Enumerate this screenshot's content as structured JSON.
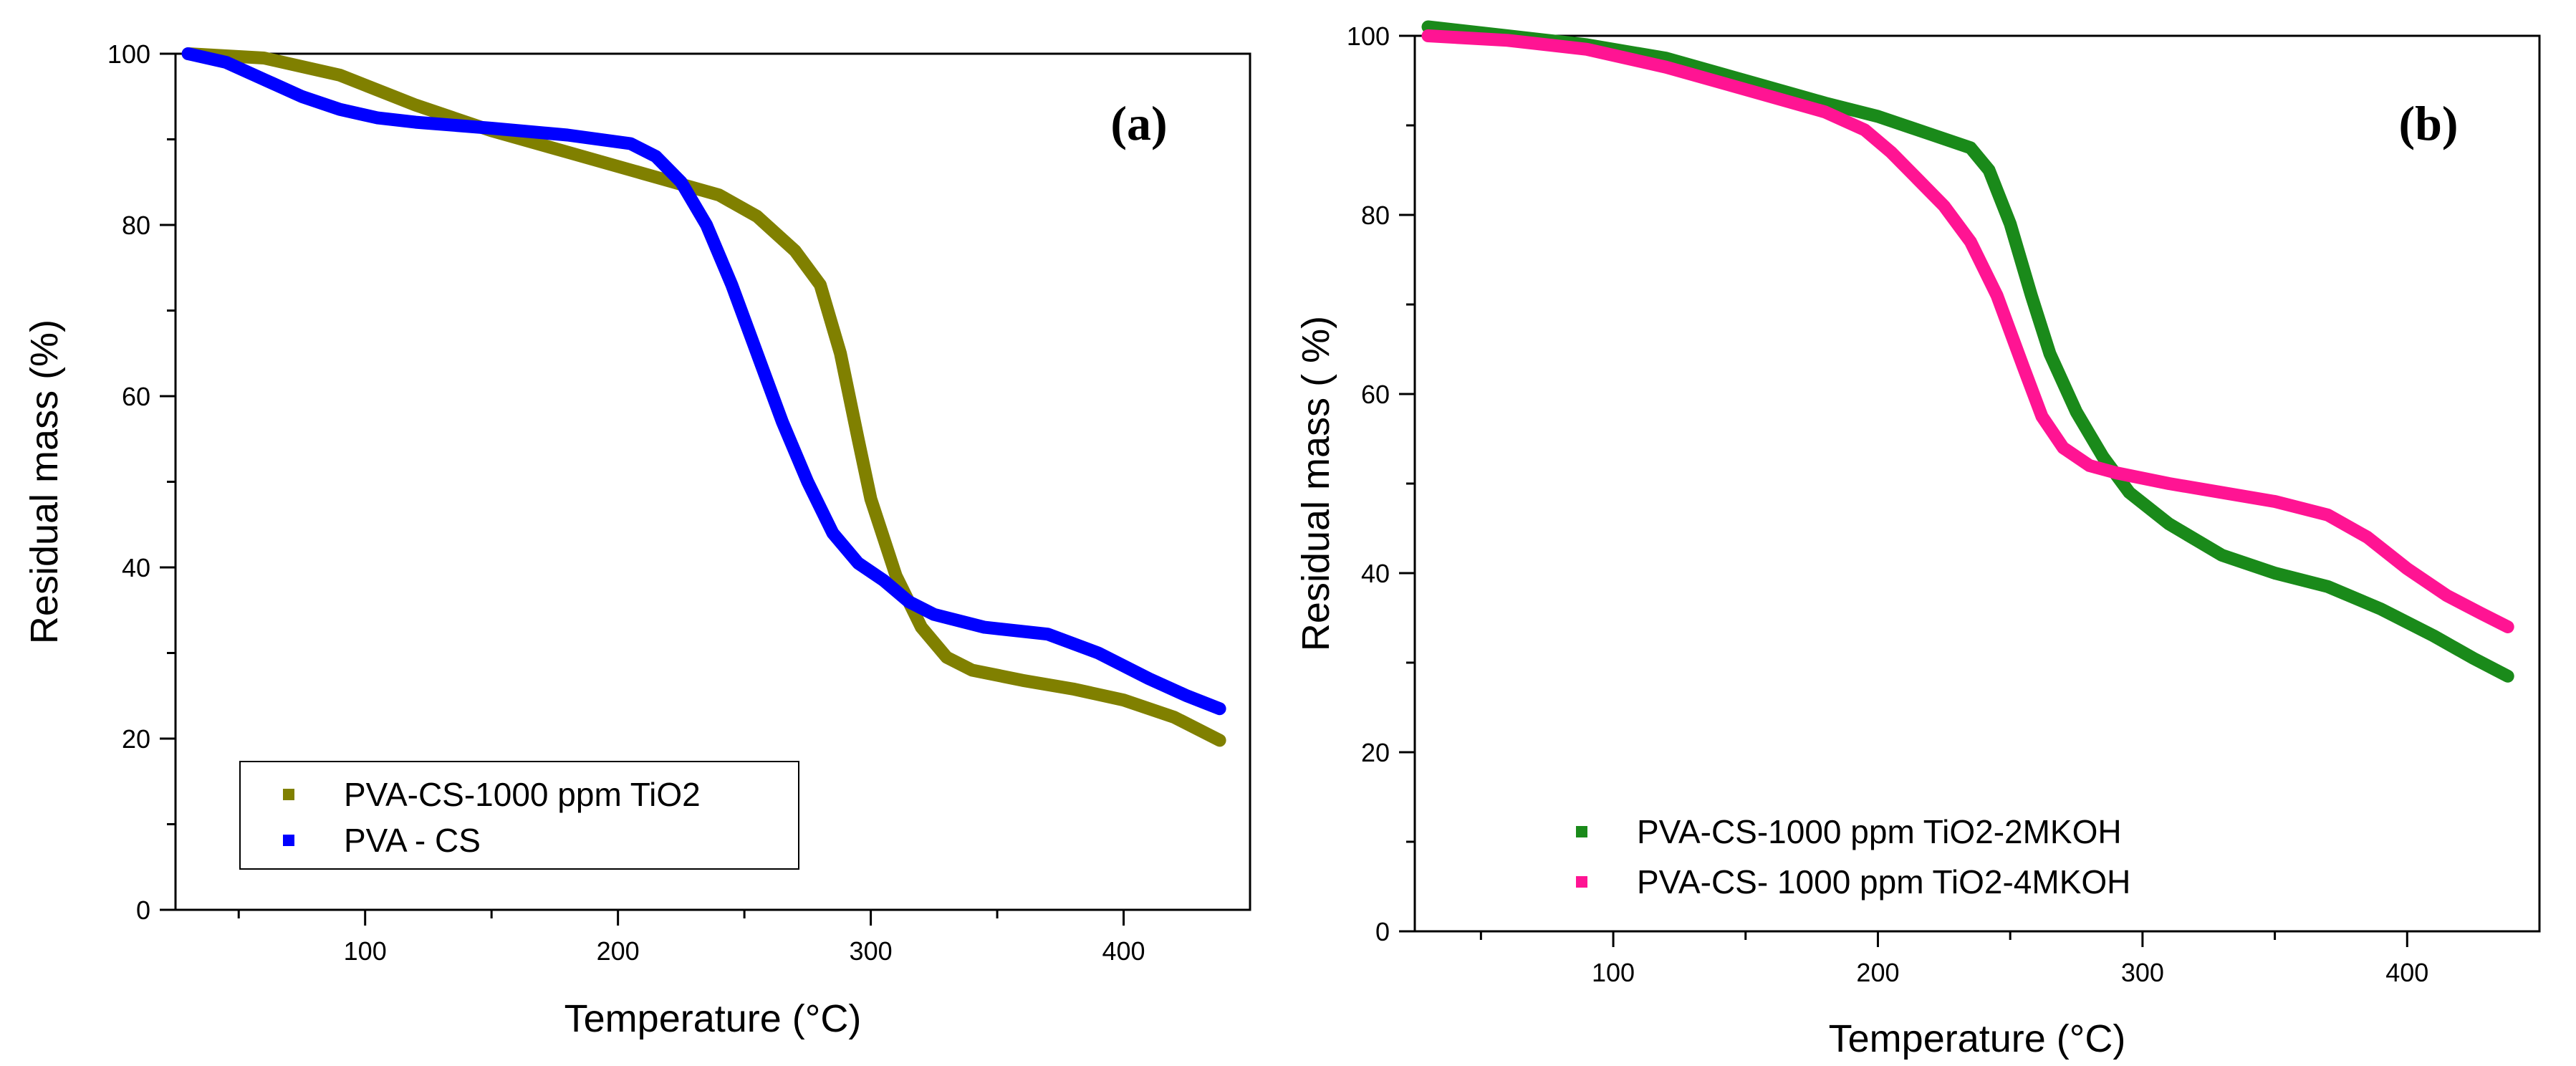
{
  "chart_data": [
    {
      "panel": "(a)",
      "type": "line",
      "xlabel": "Temperature (°C)",
      "ylabel": "Residual mass (%)",
      "xlim": [
        25,
        450
      ],
      "ylim": [
        0,
        100
      ],
      "xticks": [
        100,
        200,
        300,
        400
      ],
      "yticks": [
        0,
        20,
        40,
        60,
        80,
        100
      ],
      "grid": false,
      "legend_position": "bottom-left",
      "series": [
        {
          "name": "PVA-CS-1000 ppm TiO2",
          "color": "#808000",
          "x": [
            30,
            60,
            90,
            120,
            150,
            180,
            210,
            240,
            255,
            270,
            280,
            288,
            295,
            300,
            310,
            320,
            330,
            340,
            360,
            380,
            400,
            420,
            438
          ],
          "y": [
            100,
            99.5,
            97.5,
            94,
            91,
            88.5,
            86,
            83.5,
            81,
            77,
            73,
            65,
            55,
            48,
            39,
            33,
            29.5,
            28,
            26.8,
            25.8,
            24.5,
            22.5,
            19.8
          ]
        },
        {
          "name": "PVA - CS",
          "color": "#0000ff",
          "x": [
            30,
            45,
            60,
            75,
            90,
            105,
            120,
            150,
            180,
            205,
            215,
            225,
            235,
            245,
            255,
            265,
            275,
            285,
            295,
            305,
            315,
            325,
            345,
            370,
            390,
            410,
            425,
            438
          ],
          "y": [
            100,
            99,
            97,
            95,
            93.5,
            92.5,
            92,
            91.3,
            90.5,
            89.5,
            88,
            85,
            80,
            73,
            65,
            57,
            50,
            44,
            40.5,
            38.5,
            36,
            34.5,
            33,
            32.2,
            30,
            27,
            25,
            23.5
          ]
        }
      ]
    },
    {
      "panel": "(b)",
      "type": "line",
      "xlabel": "Temperature (°C)",
      "ylabel": "Residual mass ( %)",
      "xlim": [
        25,
        450
      ],
      "ylim": [
        0,
        100
      ],
      "xticks": [
        100,
        200,
        300,
        400
      ],
      "yticks": [
        0,
        20,
        40,
        60,
        80,
        100
      ],
      "grid": false,
      "legend_position": "bottom-left",
      "series": [
        {
          "name": "PVA-CS-1000 ppm TiO2-2MKOH",
          "color": "#1a8a1a",
          "x": [
            30,
            60,
            90,
            120,
            150,
            180,
            200,
            220,
            235,
            242,
            250,
            258,
            265,
            275,
            285,
            295,
            310,
            330,
            350,
            370,
            390,
            410,
            425,
            438
          ],
          "y": [
            101,
            100,
            99,
            97.5,
            95,
            92.5,
            91,
            89,
            87.5,
            85,
            79,
            71,
            64.5,
            58,
            53,
            49,
            45.5,
            42,
            40,
            38.5,
            36,
            33,
            30.5,
            28.5
          ]
        },
        {
          "name": "PVA-CS- 1000 ppm TiO2-4MKOH",
          "color": "#ff1493",
          "x": [
            30,
            60,
            90,
            120,
            150,
            180,
            195,
            205,
            215,
            225,
            235,
            245,
            255,
            262,
            270,
            280,
            290,
            310,
            330,
            350,
            370,
            385,
            400,
            415,
            428,
            438
          ],
          "y": [
            100,
            99.5,
            98.5,
            96.5,
            94,
            91.5,
            89.5,
            87,
            84,
            81,
            77,
            71,
            63,
            57.5,
            54,
            52,
            51.2,
            50,
            49,
            48,
            46.5,
            44,
            40.5,
            37.5,
            35.5,
            34
          ]
        }
      ]
    }
  ]
}
